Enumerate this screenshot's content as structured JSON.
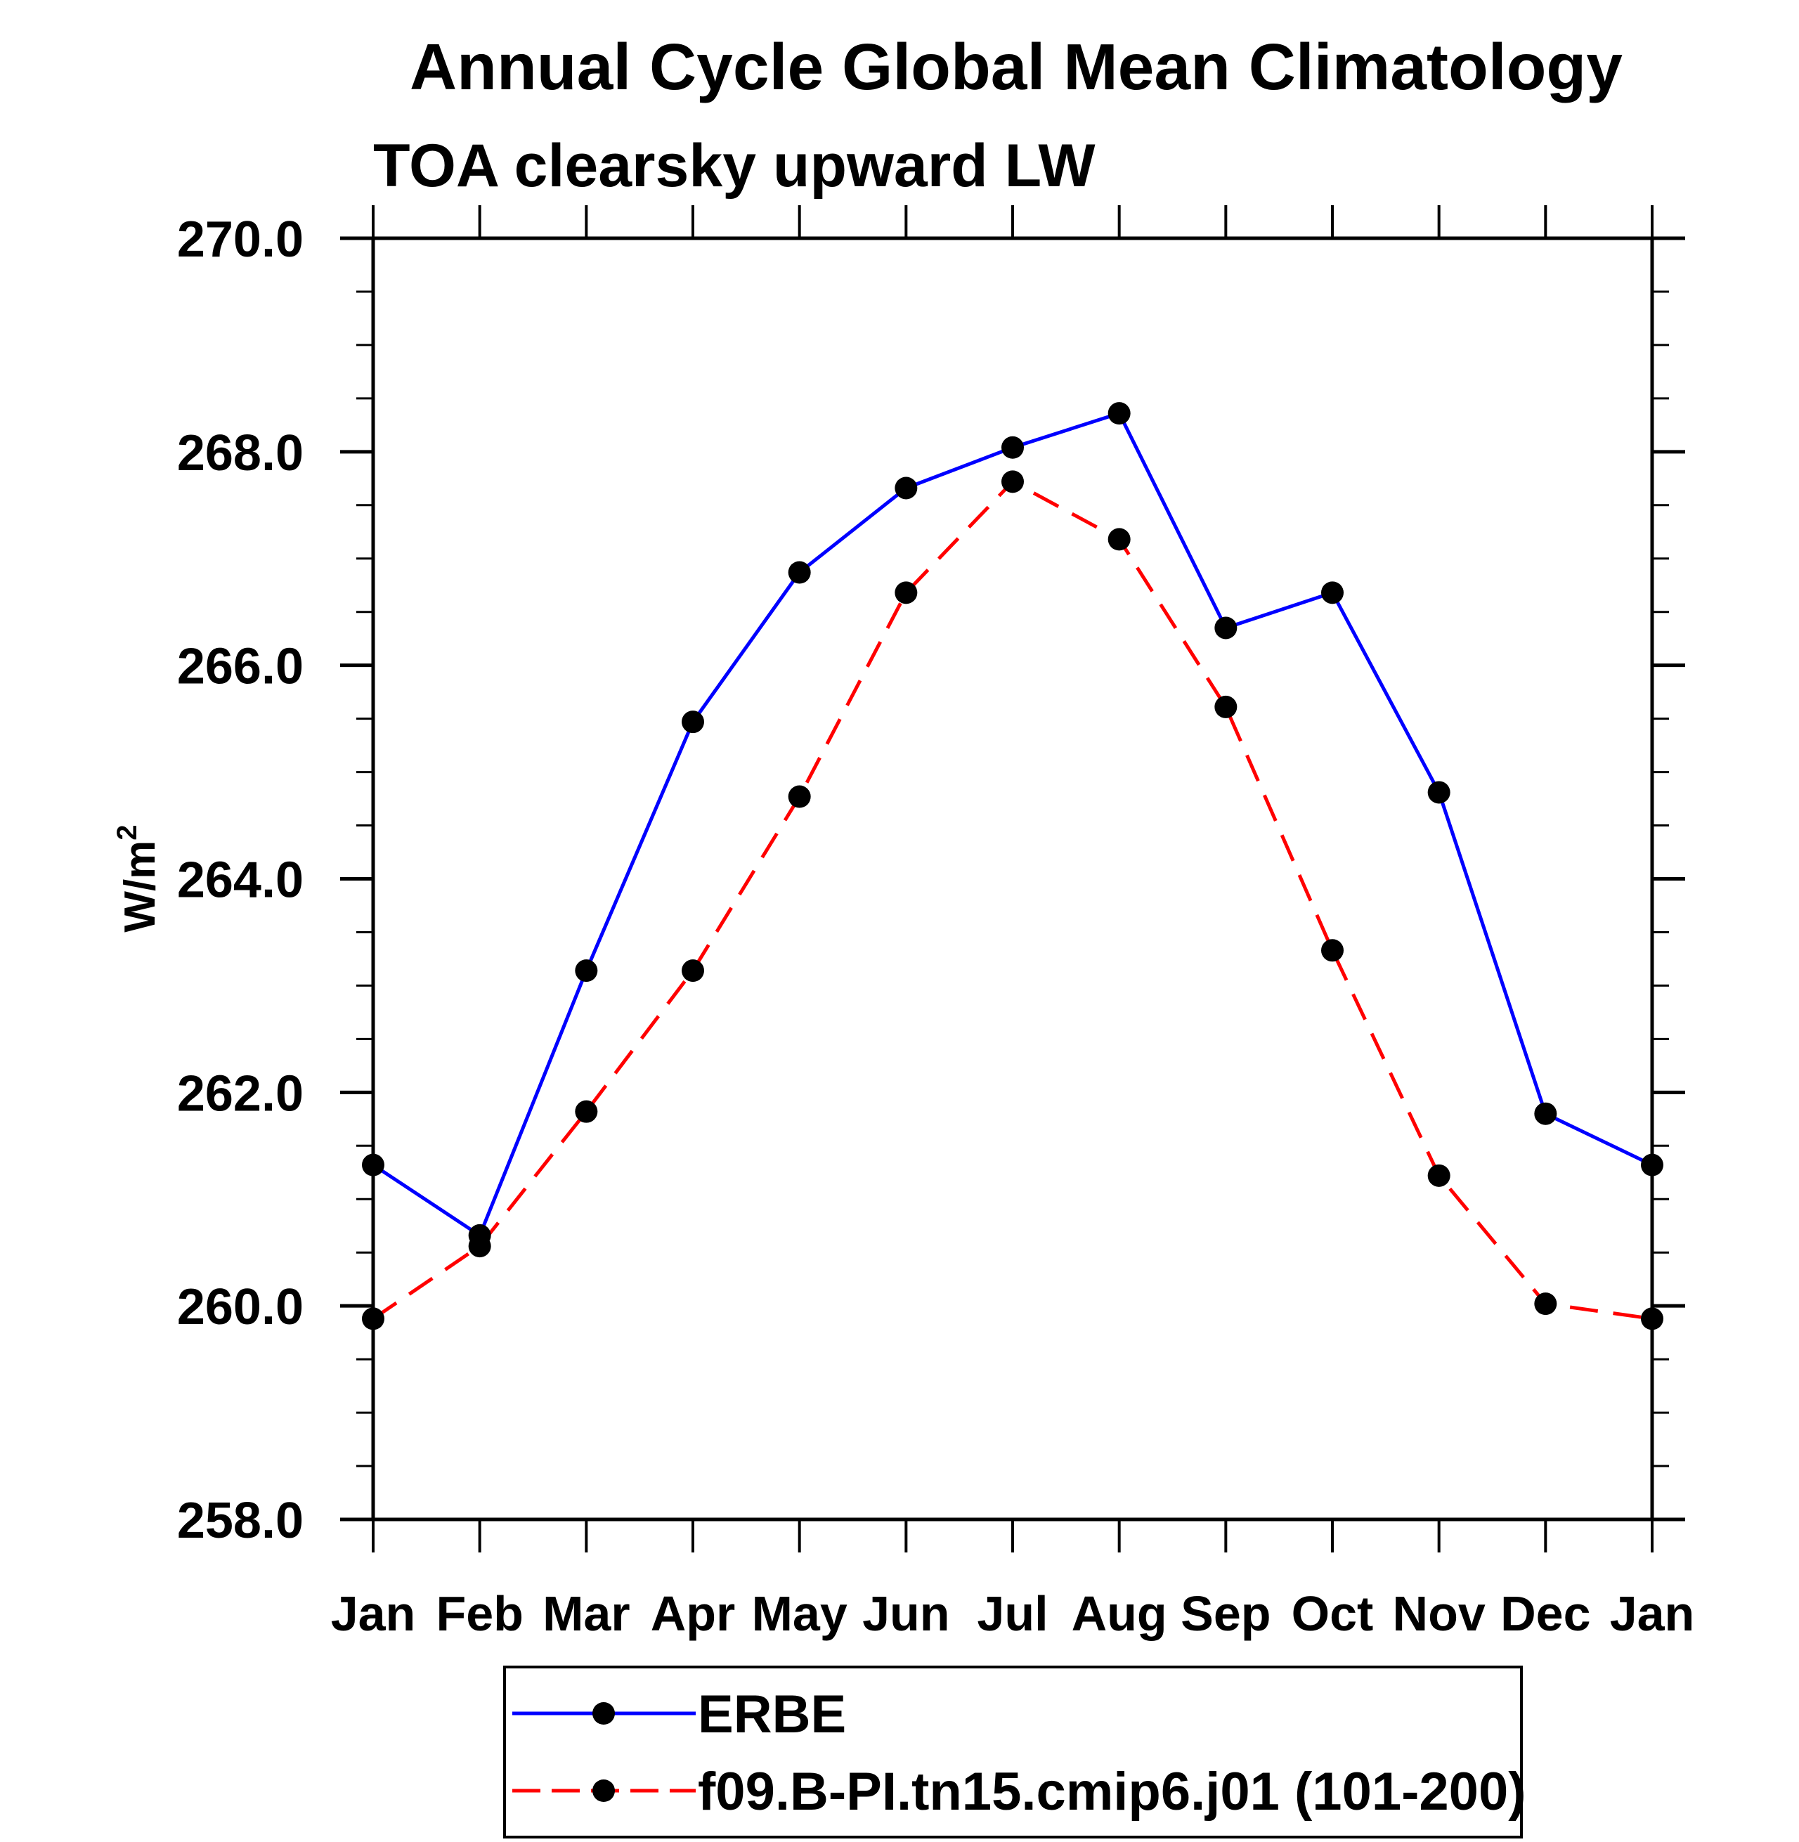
{
  "chart_data": {
    "type": "line",
    "title": "Annual Cycle Global Mean Climatology",
    "subtitle": "TOA clearsky upward LW",
    "xlabel": "",
    "ylabel": "W/m",
    "ylabel_superscript": "2",
    "categories": [
      "Jan",
      "Feb",
      "Mar",
      "Apr",
      "May",
      "Jun",
      "Jul",
      "Aug",
      "Sep",
      "Oct",
      "Nov",
      "Dec",
      "Jan"
    ],
    "ylim": [
      258.0,
      270.0
    ],
    "yticks": [
      "258.0",
      "260.0",
      "262.0",
      "264.0",
      "266.0",
      "268.0",
      "270.0"
    ],
    "ytick_values": [
      258,
      260,
      262,
      264,
      266,
      268,
      270
    ],
    "y_minor_step": 0.5,
    "grid": false,
    "legend_position": "bottom-center",
    "series": [
      {
        "name": "ERBE",
        "color": "#0000ff",
        "line_style": "solid",
        "marker": "filled-circle",
        "marker_color": "#000000",
        "values": [
          261.32,
          260.66,
          263.14,
          265.47,
          266.87,
          267.66,
          268.04,
          268.36,
          266.35,
          266.68,
          264.81,
          261.8,
          261.32
        ]
      },
      {
        "name": "f09.B-PI.tn15.cmip6.j01 (101-200)",
        "color": "#ff0000",
        "line_style": "dashed",
        "marker": "filled-circle",
        "marker_color": "#000000",
        "values": [
          259.88,
          260.56,
          261.82,
          263.14,
          264.77,
          266.68,
          267.72,
          267.18,
          265.61,
          263.33,
          261.22,
          260.02,
          259.88
        ]
      }
    ]
  }
}
